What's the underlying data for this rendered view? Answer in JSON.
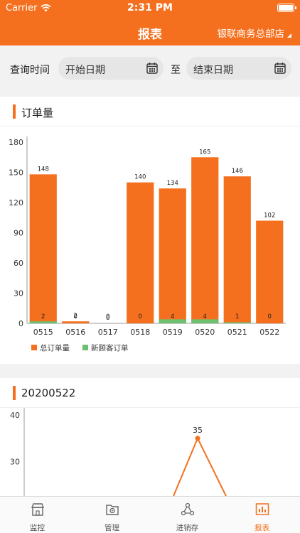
{
  "status_bar": {
    "carrier": "Carrier",
    "time": "2:31 PM"
  },
  "nav": {
    "title": "报表",
    "store": "银联商务总部店"
  },
  "query": {
    "label": "查询时间",
    "start_placeholder": "开始日期",
    "to": "至",
    "end_placeholder": "结束日期"
  },
  "orders_card": {
    "title": "订单量"
  },
  "chart_data": [
    {
      "type": "bar",
      "title": "订单量",
      "categories": [
        "0515",
        "0516",
        "0517",
        "0518",
        "0519",
        "0520",
        "0521",
        "0522"
      ],
      "series": [
        {
          "name": "总订单量",
          "values": [
            148,
            2,
            0,
            140,
            134,
            165,
            146,
            102
          ],
          "color": "#f5701e"
        },
        {
          "name": "新顾客订单",
          "values": [
            2,
            0,
            0,
            0,
            4,
            4,
            1,
            0
          ],
          "color": "#6cc070"
        }
      ],
      "yticks": [
        0,
        30,
        60,
        90,
        120,
        150,
        180
      ],
      "ylim": [
        0,
        180
      ],
      "legend": "bottom-left",
      "grid": false
    },
    {
      "type": "line",
      "title": "20200522",
      "yticks": [
        30,
        40
      ],
      "visible_points": [
        {
          "label": "35",
          "value": 35
        }
      ],
      "color": "#f5701e"
    }
  ],
  "daily_card": {
    "title": "20200522"
  },
  "tabs": [
    {
      "label": "监控",
      "icon": "store-icon"
    },
    {
      "label": "管理",
      "icon": "settings-folder-icon"
    },
    {
      "label": "进销存",
      "icon": "network-icon"
    },
    {
      "label": "报表",
      "icon": "report-chart-icon",
      "active": true
    }
  ],
  "colors": {
    "brand": "#f5701e",
    "accent_green": "#6cc070"
  }
}
